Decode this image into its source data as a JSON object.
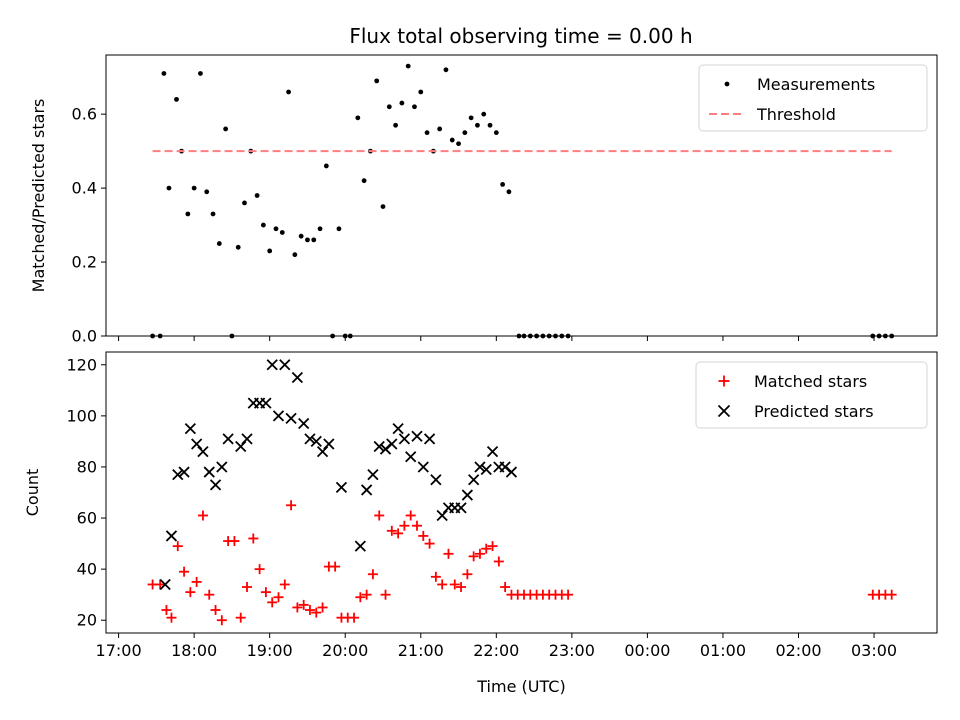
{
  "chart_data": [
    {
      "type": "scatter",
      "title": "Flux total observing time = 0.00 h",
      "xlabel": "",
      "ylabel": "Matched/Predicted stars",
      "xlim": [
        "16:50",
        "03:50"
      ],
      "ylim": [
        0,
        0.76
      ],
      "yticks": [
        "0.0",
        "0.2",
        "0.4",
        "0.6"
      ],
      "grid": false,
      "legend_placement": "top-right",
      "series": [
        {
          "name": "Measurements",
          "marker": "dot",
          "color": "#000000",
          "points": [
            [
              "17:27",
              0.0
            ],
            [
              "17:33",
              0.0
            ],
            [
              "17:36",
              0.71
            ],
            [
              "17:40",
              0.4
            ],
            [
              "17:46",
              0.64
            ],
            [
              "17:50",
              0.5
            ],
            [
              "17:55",
              0.33
            ],
            [
              "18:00",
              0.4
            ],
            [
              "18:05",
              0.71
            ],
            [
              "18:10",
              0.39
            ],
            [
              "18:15",
              0.33
            ],
            [
              "18:20",
              0.25
            ],
            [
              "18:25",
              0.56
            ],
            [
              "18:30",
              0.0
            ],
            [
              "18:35",
              0.24
            ],
            [
              "18:40",
              0.36
            ],
            [
              "18:45",
              0.5
            ],
            [
              "18:50",
              0.38
            ],
            [
              "18:55",
              0.3
            ],
            [
              "19:00",
              0.23
            ],
            [
              "19:05",
              0.29
            ],
            [
              "19:10",
              0.28
            ],
            [
              "19:15",
              0.66
            ],
            [
              "19:20",
              0.22
            ],
            [
              "19:25",
              0.27
            ],
            [
              "19:30",
              0.26
            ],
            [
              "19:35",
              0.26
            ],
            [
              "19:40",
              0.29
            ],
            [
              "19:45",
              0.46
            ],
            [
              "19:50",
              0.0
            ],
            [
              "19:55",
              0.29
            ],
            [
              "20:00",
              0.0
            ],
            [
              "20:04",
              0.0
            ],
            [
              "20:10",
              0.59
            ],
            [
              "20:15",
              0.42
            ],
            [
              "20:20",
              0.5
            ],
            [
              "20:25",
              0.69
            ],
            [
              "20:30",
              0.35
            ],
            [
              "20:35",
              0.62
            ],
            [
              "20:40",
              0.57
            ],
            [
              "20:45",
              0.63
            ],
            [
              "20:50",
              0.73
            ],
            [
              "20:55",
              0.62
            ],
            [
              "21:00",
              0.66
            ],
            [
              "21:05",
              0.55
            ],
            [
              "21:10",
              0.5
            ],
            [
              "21:15",
              0.56
            ],
            [
              "21:20",
              0.72
            ],
            [
              "21:25",
              0.53
            ],
            [
              "21:30",
              0.52
            ],
            [
              "21:35",
              0.55
            ],
            [
              "21:40",
              0.59
            ],
            [
              "21:45",
              0.57
            ],
            [
              "21:50",
              0.6
            ],
            [
              "21:55",
              0.57
            ],
            [
              "22:00",
              0.55
            ],
            [
              "22:05",
              0.41
            ],
            [
              "22:10",
              0.39
            ],
            [
              "22:18",
              0.0
            ],
            [
              "22:22",
              0.0
            ],
            [
              "22:27",
              0.0
            ],
            [
              "22:32",
              0.0
            ],
            [
              "22:37",
              0.0
            ],
            [
              "22:42",
              0.0
            ],
            [
              "22:47",
              0.0
            ],
            [
              "22:52",
              0.0
            ],
            [
              "22:57",
              0.0
            ],
            [
              "02:59",
              0.0
            ],
            [
              "03:04",
              0.0
            ],
            [
              "03:09",
              0.0
            ],
            [
              "03:14",
              0.0
            ]
          ]
        },
        {
          "name": "Threshold",
          "marker": "dashed-line",
          "color": "#ff7f7f",
          "points": [
            [
              "17:27",
              0.5
            ],
            [
              "03:14",
              0.5
            ]
          ]
        }
      ]
    },
    {
      "type": "scatter",
      "title": "",
      "xlabel": "Time (UTC)",
      "ylabel": "Count",
      "xlim": [
        "16:50",
        "03:50"
      ],
      "ylim": [
        15,
        125
      ],
      "yticks": [
        "20",
        "40",
        "60",
        "80",
        "100",
        "120"
      ],
      "xticks": [
        "17:00",
        "18:00",
        "19:00",
        "20:00",
        "21:00",
        "22:00",
        "23:00",
        "00:00",
        "01:00",
        "02:00",
        "03:00"
      ],
      "grid": false,
      "legend_placement": "top-right",
      "series": [
        {
          "name": "Matched stars",
          "marker": "plus",
          "color": "#ff0000",
          "points": [
            [
              "17:27",
              34
            ],
            [
              "17:33",
              34
            ],
            [
              "17:38",
              24
            ],
            [
              "17:42",
              21
            ],
            [
              "17:47",
              49
            ],
            [
              "17:52",
              39
            ],
            [
              "17:57",
              31
            ],
            [
              "18:02",
              35
            ],
            [
              "18:07",
              61
            ],
            [
              "18:12",
              30
            ],
            [
              "18:17",
              24
            ],
            [
              "18:22",
              20
            ],
            [
              "18:27",
              51
            ],
            [
              "18:32",
              51
            ],
            [
              "18:37",
              21
            ],
            [
              "18:42",
              33
            ],
            [
              "18:47",
              52
            ],
            [
              "18:52",
              40
            ],
            [
              "18:57",
              31
            ],
            [
              "19:02",
              27
            ],
            [
              "19:07",
              29
            ],
            [
              "19:12",
              34
            ],
            [
              "19:17",
              65
            ],
            [
              "19:22",
              25
            ],
            [
              "19:27",
              26
            ],
            [
              "19:32",
              24
            ],
            [
              "19:37",
              23
            ],
            [
              "19:42",
              25
            ],
            [
              "19:47",
              41
            ],
            [
              "19:52",
              41
            ],
            [
              "19:57",
              21
            ],
            [
              "20:02",
              21
            ],
            [
              "20:07",
              21
            ],
            [
              "20:12",
              29
            ],
            [
              "20:17",
              30
            ],
            [
              "20:22",
              38
            ],
            [
              "20:27",
              61
            ],
            [
              "20:32",
              30
            ],
            [
              "20:37",
              55
            ],
            [
              "20:42",
              54
            ],
            [
              "20:47",
              57
            ],
            [
              "20:52",
              61
            ],
            [
              "20:57",
              57
            ],
            [
              "21:02",
              53
            ],
            [
              "21:07",
              50
            ],
            [
              "21:12",
              37
            ],
            [
              "21:17",
              34
            ],
            [
              "21:22",
              46
            ],
            [
              "21:27",
              34
            ],
            [
              "21:32",
              33
            ],
            [
              "21:37",
              38
            ],
            [
              "21:42",
              45
            ],
            [
              "21:47",
              46
            ],
            [
              "21:52",
              48
            ],
            [
              "21:57",
              49
            ],
            [
              "22:02",
              43
            ],
            [
              "22:07",
              33
            ],
            [
              "22:12",
              30
            ],
            [
              "22:17",
              30
            ],
            [
              "22:22",
              30
            ],
            [
              "22:27",
              30
            ],
            [
              "22:32",
              30
            ],
            [
              "22:37",
              30
            ],
            [
              "22:42",
              30
            ],
            [
              "22:47",
              30
            ],
            [
              "22:52",
              30
            ],
            [
              "22:57",
              30
            ],
            [
              "02:59",
              30
            ],
            [
              "03:04",
              30
            ],
            [
              "03:09",
              30
            ],
            [
              "03:14",
              30
            ]
          ]
        },
        {
          "name": "Predicted stars",
          "marker": "x",
          "color": "#000000",
          "points": [
            [
              "17:37",
              34
            ],
            [
              "17:42",
              53
            ],
            [
              "17:47",
              77
            ],
            [
              "17:52",
              78
            ],
            [
              "17:57",
              95
            ],
            [
              "18:02",
              89
            ],
            [
              "18:07",
              86
            ],
            [
              "18:12",
              78
            ],
            [
              "18:17",
              73
            ],
            [
              "18:22",
              80
            ],
            [
              "18:27",
              91
            ],
            [
              "18:37",
              88
            ],
            [
              "18:42",
              91
            ],
            [
              "18:47",
              105
            ],
            [
              "18:52",
              105
            ],
            [
              "18:57",
              105
            ],
            [
              "19:02",
              120
            ],
            [
              "19:07",
              100
            ],
            [
              "19:12",
              120
            ],
            [
              "19:17",
              99
            ],
            [
              "19:22",
              115
            ],
            [
              "19:27",
              97
            ],
            [
              "19:32",
              91
            ],
            [
              "19:37",
              90
            ],
            [
              "19:42",
              86
            ],
            [
              "19:47",
              89
            ],
            [
              "19:57",
              72
            ],
            [
              "20:12",
              49
            ],
            [
              "20:17",
              71
            ],
            [
              "20:22",
              77
            ],
            [
              "20:27",
              88
            ],
            [
              "20:32",
              87
            ],
            [
              "20:37",
              89
            ],
            [
              "20:42",
              95
            ],
            [
              "20:47",
              91
            ],
            [
              "20:52",
              84
            ],
            [
              "20:57",
              92
            ],
            [
              "21:02",
              80
            ],
            [
              "21:07",
              91
            ],
            [
              "21:12",
              75
            ],
            [
              "21:17",
              61
            ],
            [
              "21:22",
              64
            ],
            [
              "21:27",
              64
            ],
            [
              "21:32",
              64
            ],
            [
              "21:37",
              69
            ],
            [
              "21:42",
              75
            ],
            [
              "21:47",
              80
            ],
            [
              "21:52",
              79
            ],
            [
              "21:57",
              86
            ],
            [
              "22:02",
              80
            ],
            [
              "22:07",
              80
            ],
            [
              "22:12",
              78
            ]
          ]
        }
      ]
    }
  ]
}
